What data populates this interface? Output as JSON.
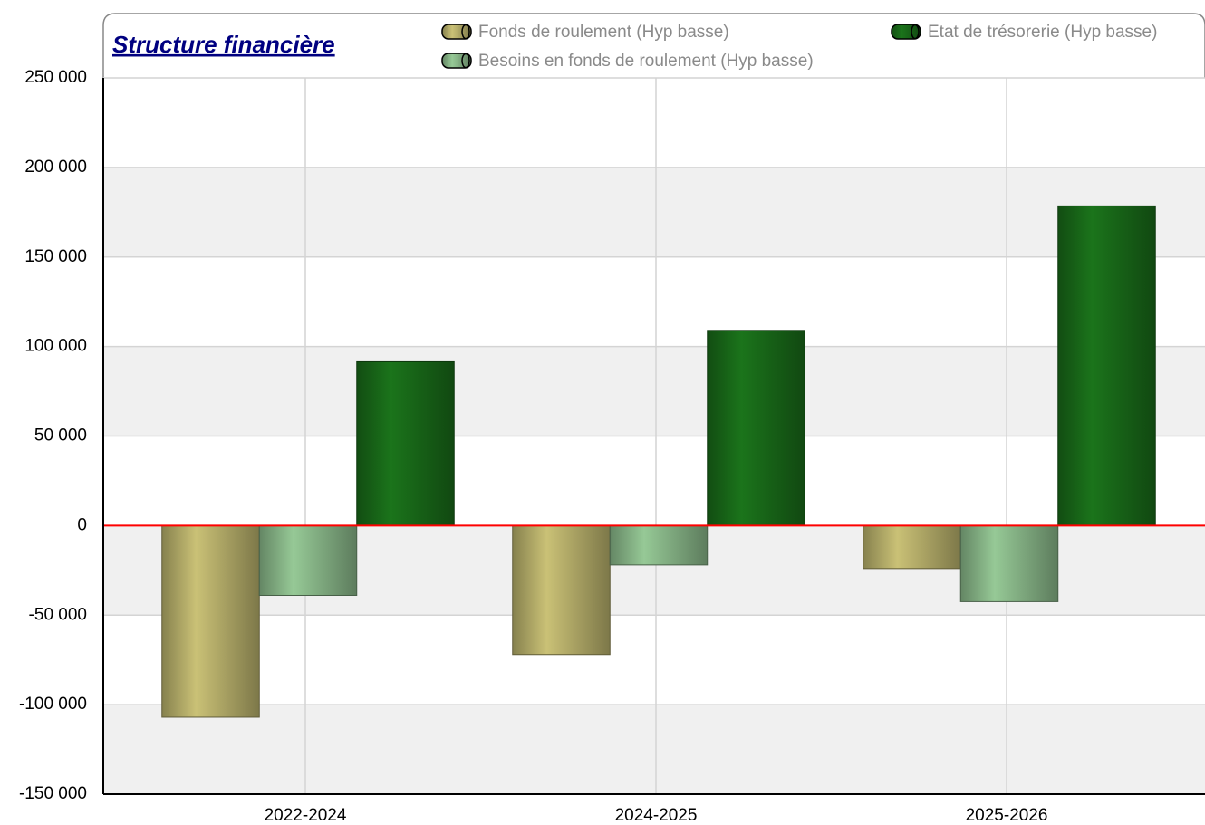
{
  "chart_data": {
    "type": "bar",
    "title": "Structure financière",
    "categories": [
      "2022-2024",
      "2024-2025",
      "2025-2026"
    ],
    "series": [
      {
        "name": "Fonds de roulement (Hyp basse)",
        "color": "#c0b870",
        "values": [
          -107000,
          -72000,
          -24000
        ]
      },
      {
        "name": "Besoins en fonds de roulement (Hyp basse)",
        "color": "#8fbf8f",
        "values": [
          -39000,
          -22000,
          -42500
        ]
      },
      {
        "name": "Etat de trésorerie (Hyp basse)",
        "color": "#1a6e1a",
        "values": [
          91500,
          109000,
          178500
        ]
      }
    ],
    "ylim": [
      -150000,
      250000
    ],
    "yticks": [
      {
        "value": -150000,
        "label": "-150 000"
      },
      {
        "value": -100000,
        "label": "-100 000"
      },
      {
        "value": -50000,
        "label": "-50 000"
      },
      0,
      {
        "value": 50000,
        "label": "50 000"
      },
      {
        "value": 100000,
        "label": "100 000"
      },
      {
        "value": 150000,
        "label": "150 000"
      },
      {
        "value": 200000,
        "label": "200 000"
      },
      {
        "value": 250000,
        "label": "250 000"
      }
    ],
    "grid": true
  }
}
